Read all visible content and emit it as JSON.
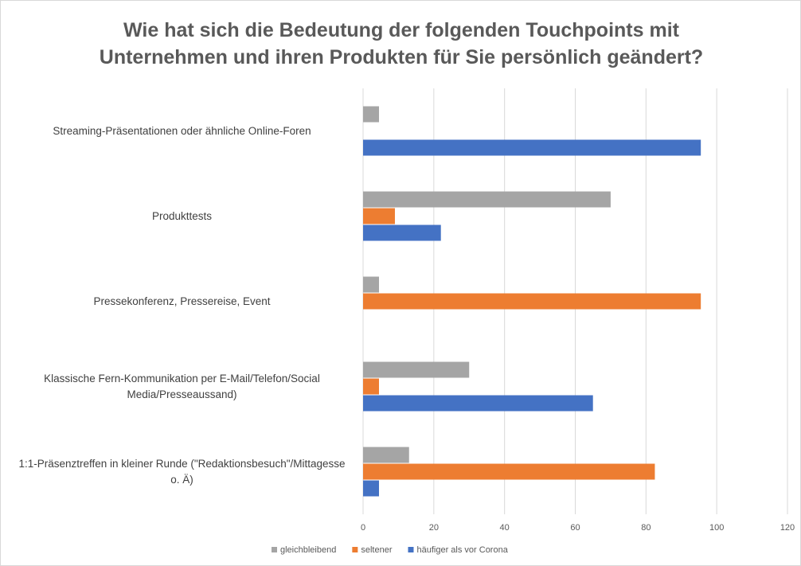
{
  "chart_data": {
    "type": "barh",
    "title": "Wie hat sich die Bedeutung der folgenden Touchpoints mit\nUnternehmen und ihren Produkten für Sie persönlich geändert?",
    "categories": [
      "Streaming-Präsentationen oder ähnliche Online-Foren",
      "Produkttests",
      "Pressekonferenz, Pressereise, Event",
      "Klassische Fern-Kommunikation per E-Mail/Telefon/Social Media/Presseaussand)",
      "1:1-Präsenztreffen in kleiner Runde (\"Redaktionsbesuch\"/Mittagesse o. Ä)"
    ],
    "series": [
      {
        "name": "gleichbleibend",
        "color": "#a5a5a5",
        "values": [
          4.5,
          70,
          4.5,
          30,
          13
        ]
      },
      {
        "name": "seltener",
        "color": "#ed7d31",
        "values": [
          0,
          9,
          95.5,
          4.5,
          82.5
        ]
      },
      {
        "name": "häufiger als vor Corona",
        "color": "#4472c4",
        "values": [
          95.5,
          22,
          0,
          65,
          4.5
        ]
      }
    ],
    "xlim": [
      0,
      120
    ],
    "xticks": [
      0,
      20,
      40,
      60,
      80,
      100,
      120
    ],
    "grid": true,
    "legend": "bottom"
  }
}
